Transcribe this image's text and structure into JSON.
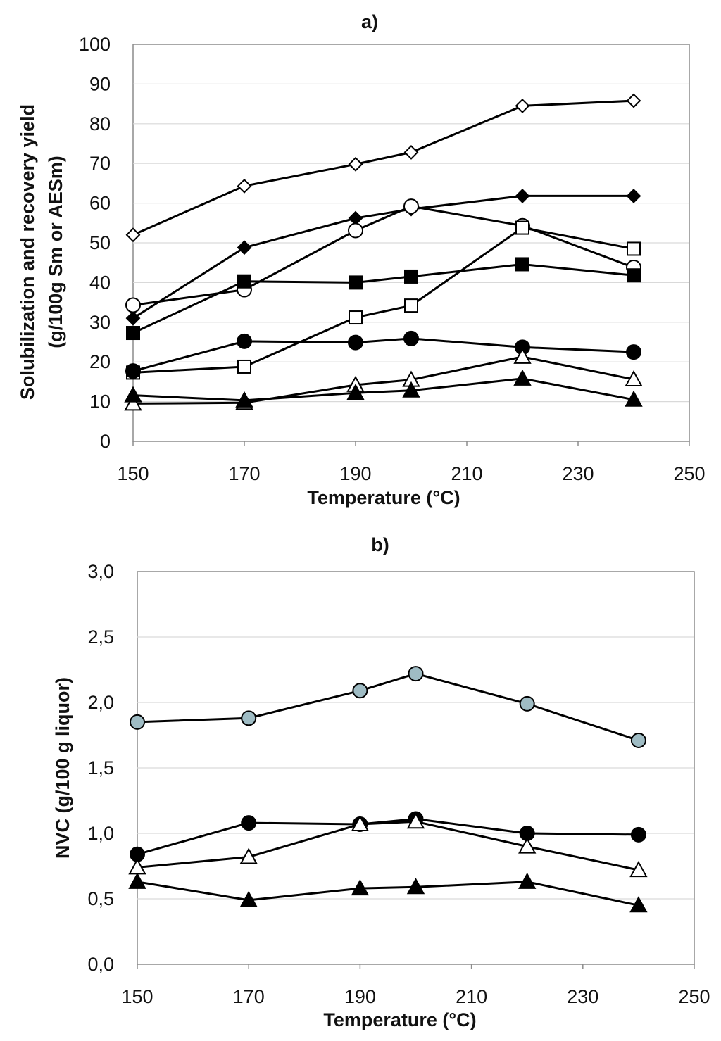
{
  "chart_data": [
    {
      "type": "line",
      "title": "a)",
      "xlabel": "Temperature (°C)",
      "ylabel_line1": "Solubilization and recovery yield",
      "ylabel_line2": "(g/100g Sm or AESm)",
      "xlim": [
        150,
        250
      ],
      "ylim": [
        0,
        100
      ],
      "grid": true,
      "x_ticks": [
        "150",
        "170",
        "190",
        "210",
        "230",
        "250"
      ],
      "y_ticks": [
        "0",
        "10",
        "20",
        "30",
        "40",
        "50",
        "60",
        "70",
        "80",
        "90",
        "100"
      ],
      "x": [
        150,
        170,
        190,
        200,
        220,
        240
      ],
      "series": [
        {
          "name": "open diamond",
          "marker": "diamond",
          "filled": false,
          "values": [
            52,
            64.3,
            69.8,
            72.8,
            84.5,
            85.8
          ]
        },
        {
          "name": "filled diamond",
          "marker": "diamond",
          "filled": true,
          "values": [
            31,
            48.8,
            56.2,
            58.5,
            61.8,
            61.8
          ]
        },
        {
          "name": "open circle",
          "marker": "circle",
          "filled": false,
          "values": [
            34.3,
            38.2,
            53.1,
            59.2,
            54.3,
            43.8
          ]
        },
        {
          "name": "open square",
          "marker": "square",
          "filled": false,
          "values": [
            17.3,
            18.8,
            31.2,
            34.2,
            53.8,
            48.5
          ]
        },
        {
          "name": "filled square",
          "marker": "square",
          "filled": true,
          "values": [
            27.3,
            40.3,
            40,
            41.5,
            44.6,
            41.8
          ]
        },
        {
          "name": "filled circle",
          "marker": "circle",
          "filled": true,
          "values": [
            17.7,
            25.2,
            24.9,
            25.9,
            23.7,
            22.5
          ]
        },
        {
          "name": "open triangle",
          "marker": "triangle",
          "filled": false,
          "values": [
            9.5,
            9.7,
            14.2,
            15.5,
            21.3,
            15.6
          ]
        },
        {
          "name": "filled triangle",
          "marker": "triangle",
          "filled": true,
          "values": [
            11.6,
            10.3,
            12.2,
            12.8,
            15.8,
            10.5
          ]
        }
      ]
    },
    {
      "type": "line",
      "title": "b)",
      "xlabel": "Temperature (°C)",
      "ylabel": "NVC (g/100 g liquor)",
      "xlim": [
        150,
        250
      ],
      "ylim": [
        0,
        3
      ],
      "grid": true,
      "x_ticks": [
        "150",
        "170",
        "190",
        "210",
        "230",
        "250"
      ],
      "y_ticks": [
        "0,0",
        "0,5",
        "1,0",
        "1,5",
        "2,0",
        "2,5",
        "3,0"
      ],
      "x": [
        150,
        170,
        190,
        200,
        220,
        240
      ],
      "series": [
        {
          "name": "grey-blue circle",
          "marker": "circle",
          "filled": true,
          "fill": "#9fbcc4",
          "values": [
            1.85,
            1.88,
            2.09,
            2.22,
            1.99,
            1.71
          ]
        },
        {
          "name": "filled circle",
          "marker": "circle",
          "filled": true,
          "fill": "#000000",
          "values": [
            0.84,
            1.08,
            1.07,
            1.11,
            1.0,
            0.99
          ]
        },
        {
          "name": "open triangle",
          "marker": "triangle",
          "filled": false,
          "fill": "#ffffff",
          "values": [
            0.74,
            0.82,
            1.07,
            1.09,
            0.9,
            0.72
          ]
        },
        {
          "name": "filled triangle",
          "marker": "triangle",
          "filled": true,
          "fill": "#000000",
          "values": [
            0.63,
            0.49,
            0.58,
            0.59,
            0.63,
            0.45
          ]
        }
      ]
    }
  ]
}
